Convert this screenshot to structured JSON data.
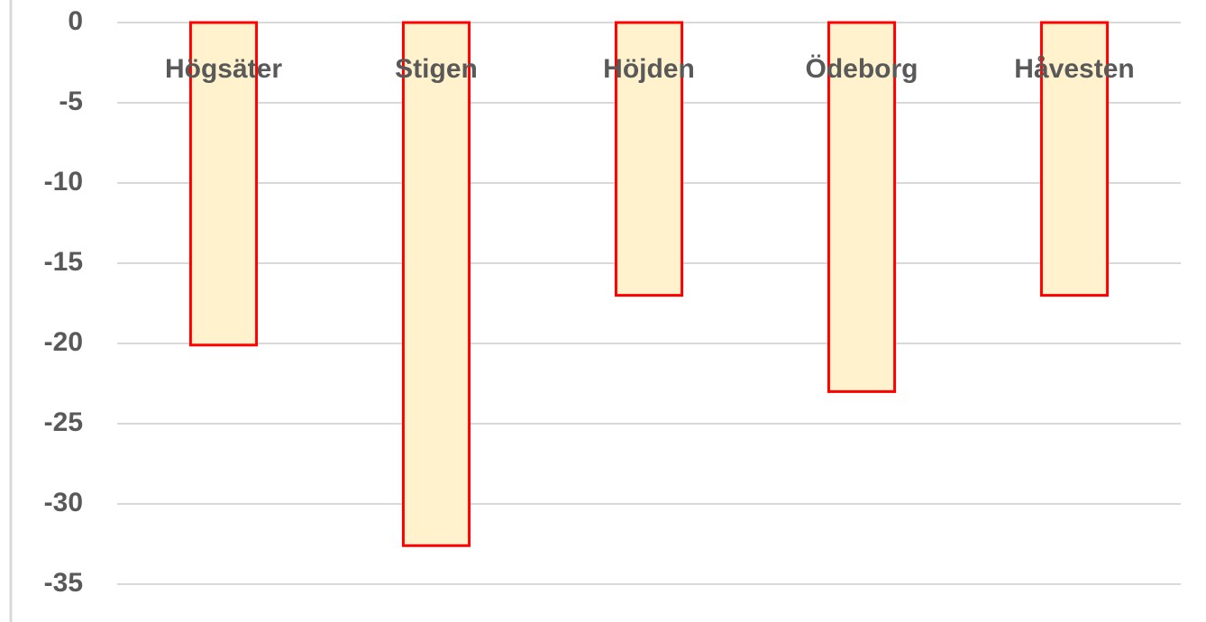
{
  "chart_data": {
    "type": "bar",
    "categories": [
      "Högsäter",
      "Stigen",
      "Höjden",
      "Ödeborg",
      "Håvesten"
    ],
    "values": [
      -20.1,
      -32.6,
      -17,
      -23,
      -17
    ],
    "color": "#fff2cc",
    "edge_color": "#ff0000",
    "ylim": [
      -35,
      0
    ],
    "yticks": [
      0,
      -5,
      -10,
      -15,
      -20,
      -25,
      -30,
      -35
    ],
    "grid": true
  }
}
